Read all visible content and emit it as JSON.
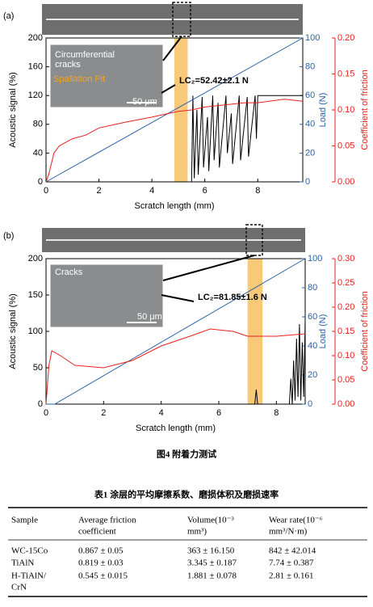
{
  "chart_data": [
    {
      "type": "line",
      "panel_label": "(a)",
      "xlabel": "Scratch length (mm)",
      "ylabel": "Acoustic signal (%)",
      "y2label": "Load (N)",
      "y3label": "Coefficient of friction",
      "xlim": [
        0,
        9.7
      ],
      "xticks": [
        0,
        2,
        4,
        6,
        8
      ],
      "ylim": [
        0,
        200
      ],
      "yticks": [
        0,
        40,
        80,
        120,
        160,
        200
      ],
      "y2lim": [
        0,
        100
      ],
      "y2ticks": [
        0,
        20,
        40,
        60,
        80,
        100
      ],
      "y3lim": [
        0,
        0.2
      ],
      "y3ticks": [
        {
          "value": 0,
          "label": "0.00"
        },
        {
          "value": 0.05,
          "label": "0.05"
        },
        {
          "value": 0.1,
          "label": "0.10"
        },
        {
          "value": 0.15,
          "label": "0.15"
        },
        {
          "value": 0.2,
          "label": "0.20"
        }
      ],
      "band": [
        4.85,
        5.35
      ],
      "band_color": "#f9c97a",
      "annotation": "LC₂=52.42±2.1 N",
      "inset_texts": [
        "Circumferential",
        "cracks",
        "Spallation Pit",
        "50 μm"
      ],
      "series": [
        {
          "color": "#000000",
          "axis": "y",
          "x": [
            0,
            5.5,
            5.55,
            5.6,
            5.7,
            5.75,
            5.9,
            5.95,
            6.1,
            6.15,
            6.3,
            6.35,
            6.5,
            6.55,
            6.8,
            6.85,
            7.0,
            7.05,
            7.3,
            7.35,
            7.6,
            7.65,
            7.9,
            7.95,
            8.0,
            9.7
          ],
          "values": [
            0,
            0,
            120,
            5,
            100,
            10,
            118,
            20,
            90,
            15,
            120,
            30,
            110,
            20,
            120,
            40,
            95,
            25,
            120,
            30,
            118,
            35,
            120,
            60,
            120,
            120
          ]
        },
        {
          "color": "#2a62a8",
          "axis": "y2",
          "x": [
            0,
            9.7
          ],
          "values": [
            0,
            100
          ]
        },
        {
          "color": "#e8211d",
          "axis": "y3",
          "x": [
            0,
            0.1,
            0.3,
            0.5,
            1,
            1.5,
            2,
            3,
            4,
            5,
            5.5,
            6,
            7,
            7.5,
            8,
            9,
            9.7
          ],
          "values": [
            0,
            0.01,
            0.04,
            0.05,
            0.06,
            0.065,
            0.075,
            0.083,
            0.09,
            0.098,
            0.1,
            0.104,
            0.108,
            0.11,
            0.11,
            0.115,
            0.112
          ]
        }
      ]
    },
    {
      "type": "line",
      "panel_label": "(b)",
      "xlabel": "Scratch length (mm)",
      "ylabel": "Acoustic signal (%)",
      "y2label": "Load (N)",
      "y3label": "Coefficient of friction",
      "xlim": [
        0,
        9
      ],
      "xticks": [
        0,
        2,
        4,
        6,
        8
      ],
      "ylim": [
        0,
        200
      ],
      "yticks": [
        0,
        50,
        100,
        150,
        200
      ],
      "y2lim": [
        0,
        100
      ],
      "y2ticks": [
        0,
        20,
        40,
        60,
        80,
        100
      ],
      "y3lim": [
        0,
        0.3
      ],
      "y3ticks": [
        {
          "value": 0,
          "label": "0.00"
        },
        {
          "value": 0.05,
          "label": "0.05"
        },
        {
          "value": 0.1,
          "label": "0.10"
        },
        {
          "value": 0.15,
          "label": "0.15"
        },
        {
          "value": 0.2,
          "label": "0.20"
        },
        {
          "value": 0.25,
          "label": "0.25"
        },
        {
          "value": 0.3,
          "label": "0.30"
        }
      ],
      "band": [
        7.0,
        7.52
      ],
      "band_color": "#f9c97a",
      "annotation": "LC₂=81.85±1.6 N",
      "inset_texts": [
        "Cracks",
        "50 μm"
      ],
      "series": [
        {
          "color": "#000000",
          "axis": "y",
          "x": [
            0,
            7.25,
            7.3,
            7.35,
            8.45,
            8.5,
            8.55,
            8.6,
            8.65,
            8.7,
            8.75,
            8.8,
            8.85,
            8.9,
            8.95,
            9
          ],
          "values": [
            0,
            0,
            20,
            0,
            0,
            35,
            0,
            60,
            5,
            90,
            10,
            110,
            5,
            85,
            10,
            115
          ]
        },
        {
          "color": "#2a62a8",
          "axis": "y2",
          "x": [
            0,
            0.3,
            9
          ],
          "values": [
            0,
            0,
            100
          ]
        },
        {
          "color": "#e8211d",
          "axis": "y3",
          "x": [
            0,
            0.1,
            0.2,
            0.5,
            1,
            2,
            3,
            4,
            5,
            5.7,
            6.5,
            7,
            8,
            9
          ],
          "values": [
            0,
            0.08,
            0.11,
            0.1,
            0.08,
            0.075,
            0.09,
            0.12,
            0.14,
            0.155,
            0.15,
            0.14,
            0.14,
            0.145
          ]
        }
      ]
    }
  ],
  "figure_caption": "图4 附着力测试",
  "table": {
    "title": "表1 涂层的平均摩擦系数、磨损体积及磨损速率",
    "header": [
      [
        "Sample"
      ],
      [
        "Average friction",
        "coefficient"
      ],
      [
        "Volume(10⁻³",
        "mm³)"
      ],
      [
        "Wear rate(10⁻⁶",
        "mm³/N·m)"
      ]
    ],
    "rows": [
      [
        [
          "WC-15Co"
        ],
        [
          "0.867 ± 0.05"
        ],
        [
          "363 ± 16.150"
        ],
        [
          "842 ± 42.014"
        ]
      ],
      [
        [
          "TiAlN"
        ],
        [
          "0.819 ± 0.03"
        ],
        [
          "3.345 ± 0.187"
        ],
        [
          "7.74 ± 0.387"
        ]
      ],
      [
        [
          "H-TiAlN/",
          "CrN"
        ],
        [
          "0.545 ± 0.015"
        ],
        [
          "1.881 ± 0.078"
        ],
        [
          "2.81 ± 0.161"
        ]
      ]
    ]
  }
}
